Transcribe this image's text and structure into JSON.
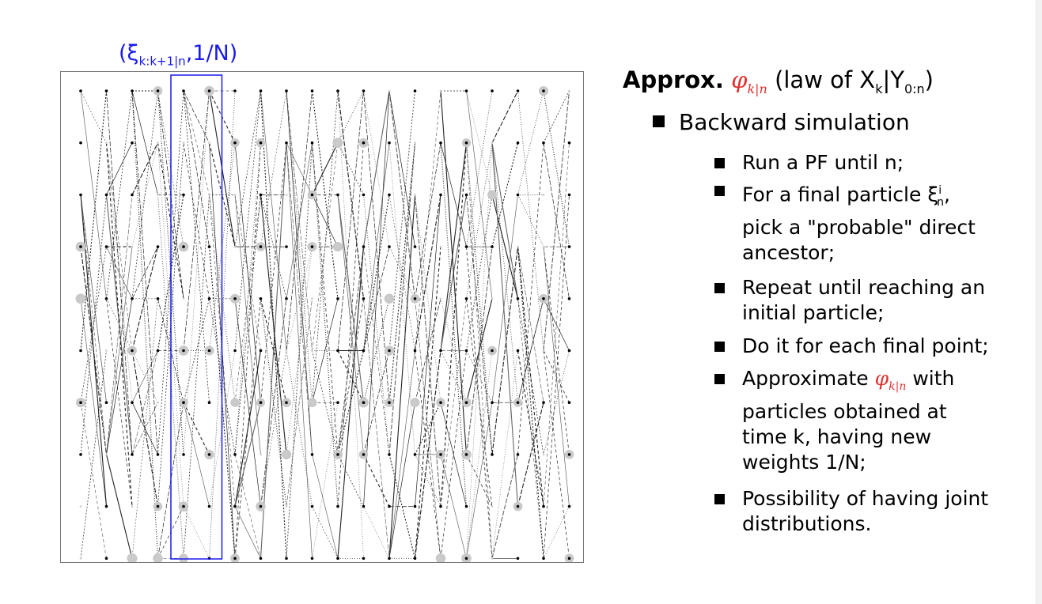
{
  "figure": {
    "caption_main": "(ξ",
    "caption_sub": "k:k+1|n",
    "caption_tail": ",1/N)",
    "columns": 20,
    "rows": 10,
    "highlight_columns": [
      4,
      5
    ],
    "highlight_color": "#1a1aee",
    "particle_color": "#000000",
    "weight_halo_color": "#c9c9c9"
  },
  "slide": {
    "heading_bold": "Approx.",
    "heading_phi": "φ",
    "heading_phi_sub": "k|n",
    "heading_rest": "(law of X",
    "heading_x_sub": "k",
    "heading_bar": "|Y",
    "heading_y_sub": "0:n",
    "heading_close": ")",
    "level1": "Backward simulation",
    "items": [
      {
        "lines": [
          "Run a PF until n;"
        ]
      },
      {
        "lines": [
          "For a final particle ξ",
          "pick a \"probable\" direct",
          "ancestor;"
        ],
        "sup": "i",
        "sub": "n",
        "after": ","
      },
      {
        "lines": [
          "Repeat until reaching an",
          "initial particle;"
        ]
      },
      {
        "lines": [
          "Do it for each final point;"
        ]
      },
      {
        "lines": [
          "Approximate",
          "particles obtained at",
          "time k, having new",
          "weights 1/N;"
        ],
        "phi": "φ",
        "phi_sub": "k|n",
        "phi_after": "with"
      },
      {
        "lines": [
          "Possibility of having joint",
          "distributions."
        ]
      }
    ]
  }
}
